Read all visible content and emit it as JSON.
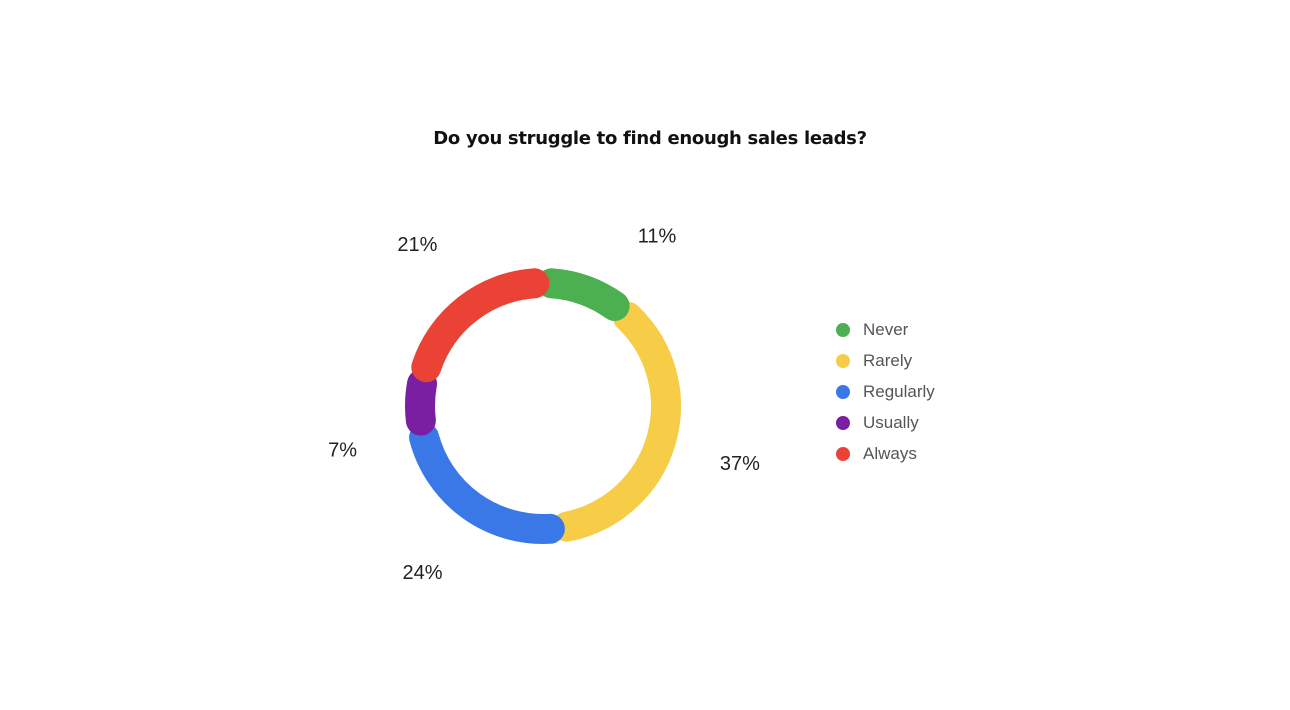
{
  "chart_data": {
    "type": "pie",
    "variant": "donut",
    "title": "Do you struggle to find enough sales leads?",
    "legend_position": "right",
    "series": [
      {
        "name": "Never",
        "value": 11,
        "label": "11%",
        "color": "#4caf50"
      },
      {
        "name": "Rarely",
        "value": 37,
        "label": "37%",
        "color": "#f7cc47"
      },
      {
        "name": "Regularly",
        "value": 24,
        "label": "24%",
        "color": "#3b78e7"
      },
      {
        "name": "Usually",
        "value": 7,
        "label": "7%",
        "color": "#7b1fa2"
      },
      {
        "name": "Always",
        "value": 21,
        "label": "21%",
        "color": "#ea4335"
      }
    ]
  }
}
